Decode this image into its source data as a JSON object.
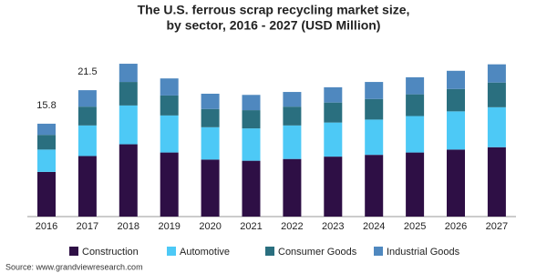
{
  "chart_data": {
    "type": "stacked-bar",
    "title": [
      "The U.S. ferrous scrap recycling market size,",
      "by sector, 2016 - 2027 (USD Million)"
    ],
    "categories": [
      "2016",
      "2017",
      "2018",
      "2019",
      "2020",
      "2021",
      "2022",
      "2023",
      "2024",
      "2025",
      "2026",
      "2027"
    ],
    "series": [
      {
        "name": "Construction",
        "color": "#2e0f45",
        "values": [
          7.6,
          10.3,
          12.3,
          10.9,
          9.7,
          9.5,
          9.8,
          10.2,
          10.5,
          10.9,
          11.4,
          11.8
        ]
      },
      {
        "name": "Automotive",
        "color": "#4dc9f6",
        "values": [
          3.8,
          5.2,
          6.6,
          6.3,
          5.5,
          5.5,
          5.7,
          5.8,
          6.0,
          6.2,
          6.5,
          6.8
        ]
      },
      {
        "name": "Consumer Goods",
        "color": "#2a6f7f",
        "values": [
          2.5,
          3.2,
          4.0,
          3.4,
          3.1,
          3.1,
          3.2,
          3.4,
          3.5,
          3.7,
          3.8,
          4.2
        ]
      },
      {
        "name": "Industrial Goods",
        "color": "#4f88bf",
        "values": [
          1.9,
          2.8,
          3.1,
          2.9,
          2.6,
          2.6,
          2.5,
          2.6,
          2.9,
          2.9,
          3.1,
          3.1
        ]
      }
    ],
    "total_labels": [
      15.8,
      21.5,
      null,
      null,
      null,
      null,
      null,
      null,
      null,
      null,
      null,
      null
    ],
    "source": "Source: www.grandviewresearch.com"
  }
}
